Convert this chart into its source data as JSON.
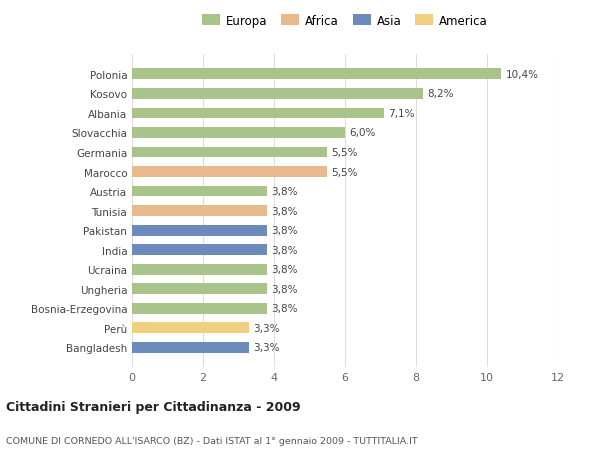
{
  "categories": [
    "Polonia",
    "Kosovo",
    "Albania",
    "Slovacchia",
    "Germania",
    "Marocco",
    "Austria",
    "Tunisia",
    "Pakistan",
    "India",
    "Ucraina",
    "Ungheria",
    "Bosnia-Erzegovina",
    "Perù",
    "Bangladesh"
  ],
  "values": [
    10.4,
    8.2,
    7.1,
    6.0,
    5.5,
    5.5,
    3.8,
    3.8,
    3.8,
    3.8,
    3.8,
    3.8,
    3.8,
    3.3,
    3.3
  ],
  "continents": [
    "Europa",
    "Europa",
    "Europa",
    "Europa",
    "Europa",
    "Africa",
    "Europa",
    "Africa",
    "Asia",
    "Asia",
    "Europa",
    "Europa",
    "Europa",
    "America",
    "Asia"
  ],
  "colors": {
    "Europa": "#a8c48a",
    "Africa": "#e8b98a",
    "Asia": "#6b8cba",
    "America": "#f0d080"
  },
  "legend_order": [
    "Europa",
    "Africa",
    "Asia",
    "America"
  ],
  "title1": "Cittadini Stranieri per Cittadinanza - 2009",
  "title2": "COMUNE DI CORNEDO ALL'ISARCO (BZ) - Dati ISTAT al 1° gennaio 2009 - TUTTITALIA.IT",
  "xlim": [
    0,
    12
  ],
  "xticks": [
    0,
    2,
    4,
    6,
    8,
    10,
    12
  ],
  "background_color": "#ffffff",
  "grid_color": "#dddddd",
  "bar_height": 0.55
}
